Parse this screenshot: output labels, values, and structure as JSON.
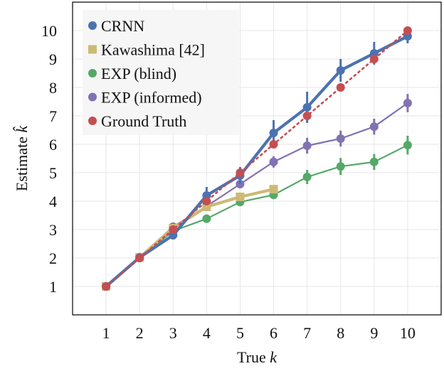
{
  "chart_data": {
    "type": "line",
    "title": "",
    "xlabel": "True k",
    "ylabel": "Estimate k̂",
    "xlim": [
      0,
      11
    ],
    "ylim": [
      0,
      11
    ],
    "xticks": [
      1,
      2,
      3,
      4,
      5,
      6,
      7,
      8,
      9,
      10
    ],
    "yticks": [
      1,
      2,
      3,
      4,
      5,
      6,
      7,
      8,
      9,
      10
    ],
    "grid": true,
    "legend_position": "top-left",
    "series": [
      {
        "name": "CRNN",
        "color": "#4c72b0",
        "marker": "circle",
        "style": "solid-thick",
        "x": [
          1,
          2,
          3,
          4,
          5,
          6,
          7,
          8,
          9,
          10
        ],
        "y": [
          1.0,
          2.02,
          2.8,
          4.2,
          4.9,
          6.4,
          7.3,
          8.6,
          9.2,
          9.8
        ],
        "err": [
          0.05,
          0.05,
          0.15,
          0.3,
          0.3,
          0.45,
          0.55,
          0.4,
          0.4,
          0.25
        ]
      },
      {
        "name": "Kawashima [42]",
        "color": "#ccb974",
        "marker": "square",
        "style": "solid-thick",
        "x": [
          1,
          2,
          3,
          4,
          5,
          6
        ],
        "y": [
          1.0,
          2.02,
          3.05,
          3.8,
          4.15,
          4.42
        ],
        "err": [
          0,
          0,
          0,
          0,
          0,
          0
        ]
      },
      {
        "name": "EXP (blind)",
        "color": "#55a868",
        "marker": "circle",
        "style": "solid",
        "x": [
          1,
          2,
          3,
          4,
          5,
          6,
          7,
          8,
          9,
          10
        ],
        "y": [
          1.0,
          2.0,
          2.95,
          3.38,
          3.97,
          4.22,
          4.85,
          5.22,
          5.38,
          5.97
        ],
        "err": [
          0.03,
          0.03,
          0.1,
          0.1,
          0.12,
          0.15,
          0.25,
          0.3,
          0.28,
          0.33
        ]
      },
      {
        "name": "EXP (informed)",
        "color": "#8172b2",
        "marker": "circle",
        "style": "solid",
        "x": [
          1,
          2,
          3,
          4,
          5,
          6,
          7,
          8,
          9,
          10
        ],
        "y": [
          1.0,
          2.03,
          3.1,
          3.82,
          4.6,
          5.38,
          5.95,
          6.2,
          6.62,
          7.45
        ],
        "err": [
          0.03,
          0.03,
          0.1,
          0.12,
          0.15,
          0.2,
          0.28,
          0.28,
          0.28,
          0.32
        ]
      },
      {
        "name": "Ground Truth",
        "color": "#c44e52",
        "marker": "circle",
        "style": "dotted",
        "x": [
          1,
          2,
          3,
          4,
          5,
          6,
          7,
          8,
          9,
          10
        ],
        "y": [
          1,
          2,
          3,
          4,
          5,
          6,
          7,
          8,
          9,
          10
        ],
        "err": [
          0,
          0,
          0,
          0,
          0,
          0,
          0,
          0,
          0,
          0
        ]
      }
    ]
  }
}
